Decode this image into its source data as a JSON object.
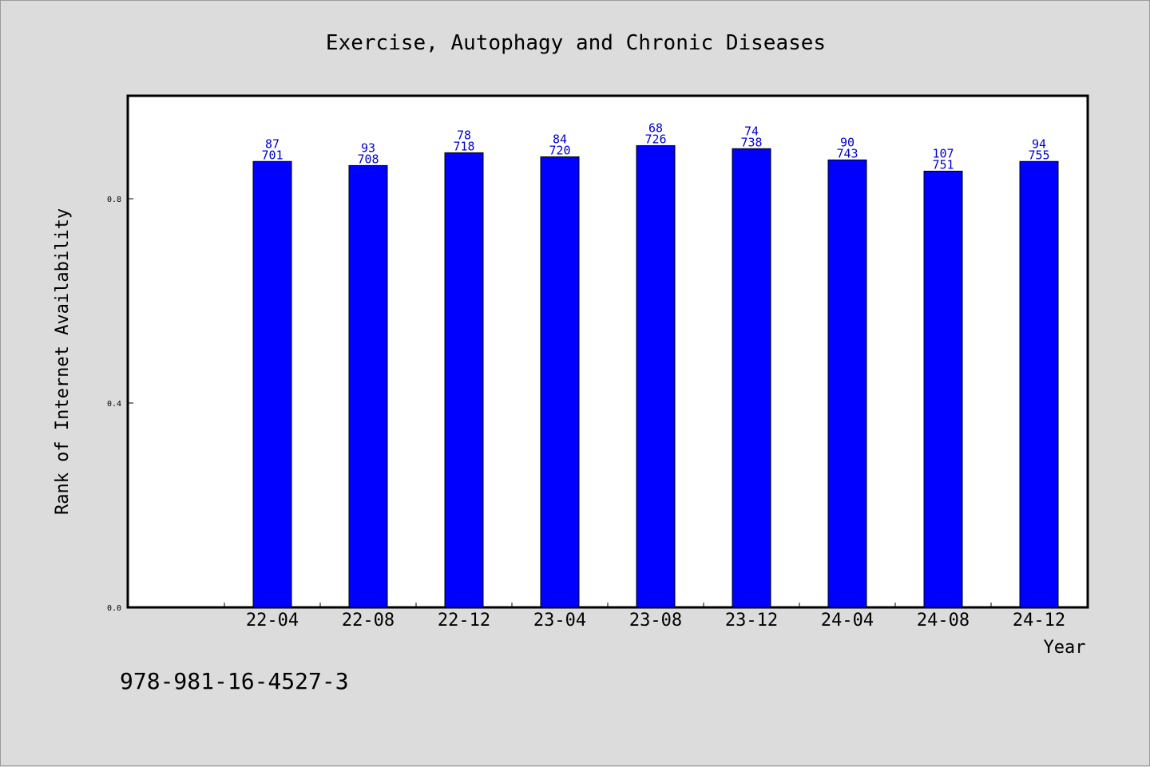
{
  "chart_data": {
    "type": "bar",
    "title": "Exercise, Autophagy and Chronic Diseases",
    "xlabel": "Year",
    "ylabel": "Rank of Internet Availability",
    "categories": [
      "22-04",
      "22-08",
      "22-12",
      "23-04",
      "23-08",
      "23-12",
      "24-04",
      "24-08",
      "24-12"
    ],
    "values": [
      0.873,
      0.865,
      0.89,
      0.882,
      0.904,
      0.898,
      0.876,
      0.854,
      0.873
    ],
    "bar_labels_top": [
      "87",
      "93",
      "78",
      "84",
      "68",
      "74",
      "90",
      "107",
      "94"
    ],
    "bar_labels_bottom": [
      "701",
      "708",
      "718",
      "720",
      "726",
      "738",
      "743",
      "751",
      "755"
    ],
    "ylim": [
      0.0,
      1.0
    ],
    "yticks": [
      0.0,
      0.4,
      0.8
    ],
    "ytick_labels": [
      "0.0",
      "0.4",
      "0.8"
    ],
    "bar_color": "#0000ff",
    "label_color": "#0000cc",
    "grid": false,
    "legend": "none"
  },
  "footer": {
    "isbn": "978-981-16-4527-3"
  }
}
